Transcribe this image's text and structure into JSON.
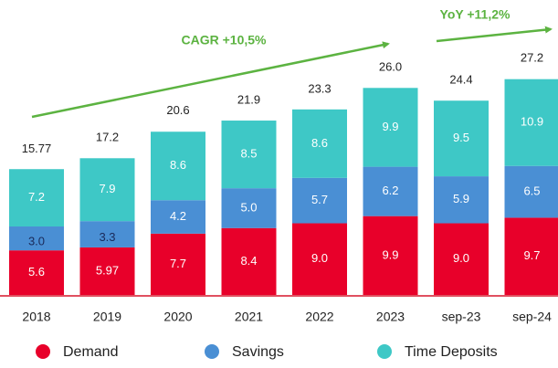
{
  "chart_data": {
    "type": "stacked-bar",
    "categories": [
      "2018",
      "2019",
      "2020",
      "2021",
      "2022",
      "2023",
      "sep-23",
      "sep-24"
    ],
    "series": [
      {
        "name": "Demand",
        "color": "#e8002a",
        "values": [
          5.6,
          5.97,
          7.7,
          8.4,
          9.0,
          9.9,
          9.0,
          9.7
        ],
        "value_labels": [
          "5.6",
          "5.97",
          "7.7",
          "8.4",
          "9.0",
          "9.9",
          "9.0",
          "9.7"
        ]
      },
      {
        "name": "Savings",
        "color": "#4a8fd4",
        "values": [
          3.0,
          3.3,
          4.2,
          5.0,
          5.7,
          6.2,
          5.9,
          6.5
        ],
        "value_labels": [
          "3.0",
          "3.3",
          "4.2",
          "5.0",
          "5.7",
          "6.2",
          "5.9",
          "6.5"
        ]
      },
      {
        "name": "Time Deposits",
        "color": "#3ec8c6",
        "values": [
          7.2,
          7.9,
          8.6,
          8.5,
          8.6,
          9.9,
          9.5,
          10.9
        ],
        "value_labels": [
          "7.2",
          "7.9",
          "8.6",
          "8.5",
          "8.6",
          "9.9",
          "9.5",
          "10.9"
        ]
      }
    ],
    "totals": [
      15.77,
      17.2,
      20.6,
      21.9,
      23.3,
      26.0,
      24.4,
      27.2
    ],
    "total_labels": [
      "15.77",
      "17.2",
      "20.6",
      "21.9",
      "23.3",
      "26.0",
      "24.4",
      "27.2"
    ],
    "annotations": [
      "CAGR +10,5%",
      "YoY +11,2%"
    ],
    "legend": "bottom"
  }
}
